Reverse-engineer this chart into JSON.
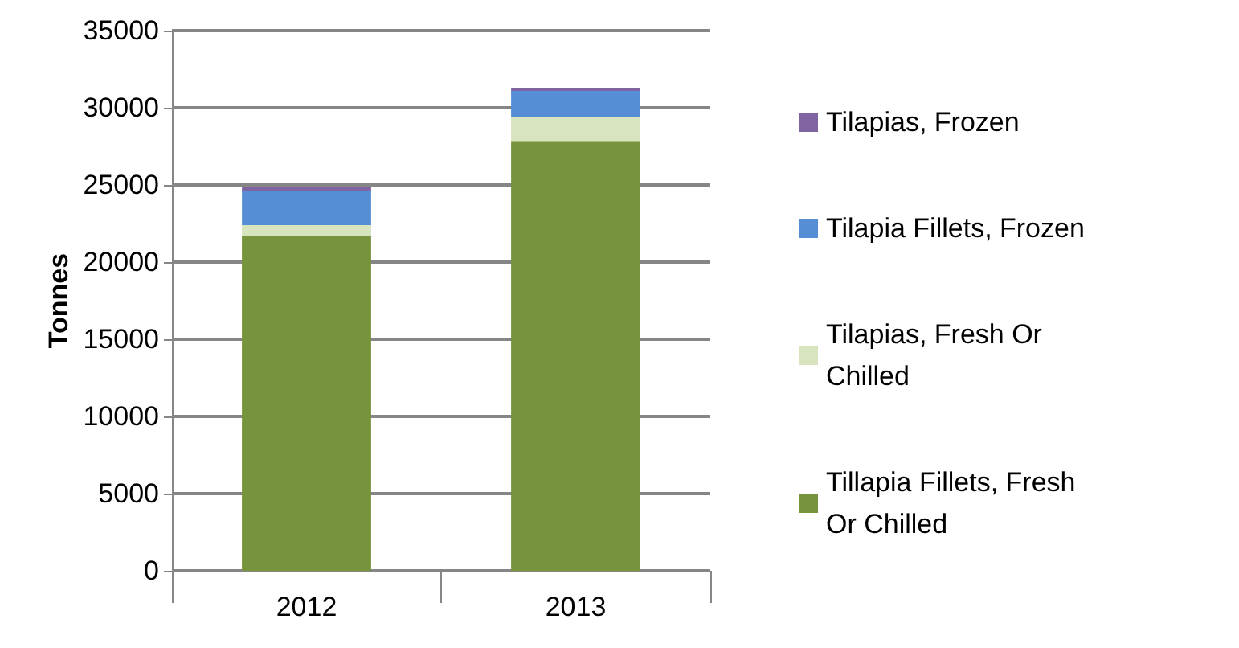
{
  "chart_data": {
    "type": "bar",
    "stacked": true,
    "ylabel": "Tonnes",
    "categories": [
      "2012",
      "2013"
    ],
    "series": [
      {
        "name": "Tillapia Fillets, Fresh Or Chilled",
        "color": "#77933c",
        "values": [
          21700,
          27800
        ]
      },
      {
        "name": "Tilapias, Fresh Or Chilled",
        "color": "#d7e4bd",
        "values": [
          700,
          1600
        ]
      },
      {
        "name": "Tilapia Fillets, Frozen",
        "color": "#558ed5",
        "values": [
          2200,
          1700
        ]
      },
      {
        "name": "Tilapias, Frozen",
        "color": "#8064a2",
        "values": [
          300,
          200
        ]
      }
    ],
    "ylim": [
      0,
      35000
    ],
    "yticks": [
      0,
      5000,
      10000,
      15000,
      20000,
      25000,
      30000,
      35000
    ],
    "grid": "y",
    "legend": "right"
  }
}
